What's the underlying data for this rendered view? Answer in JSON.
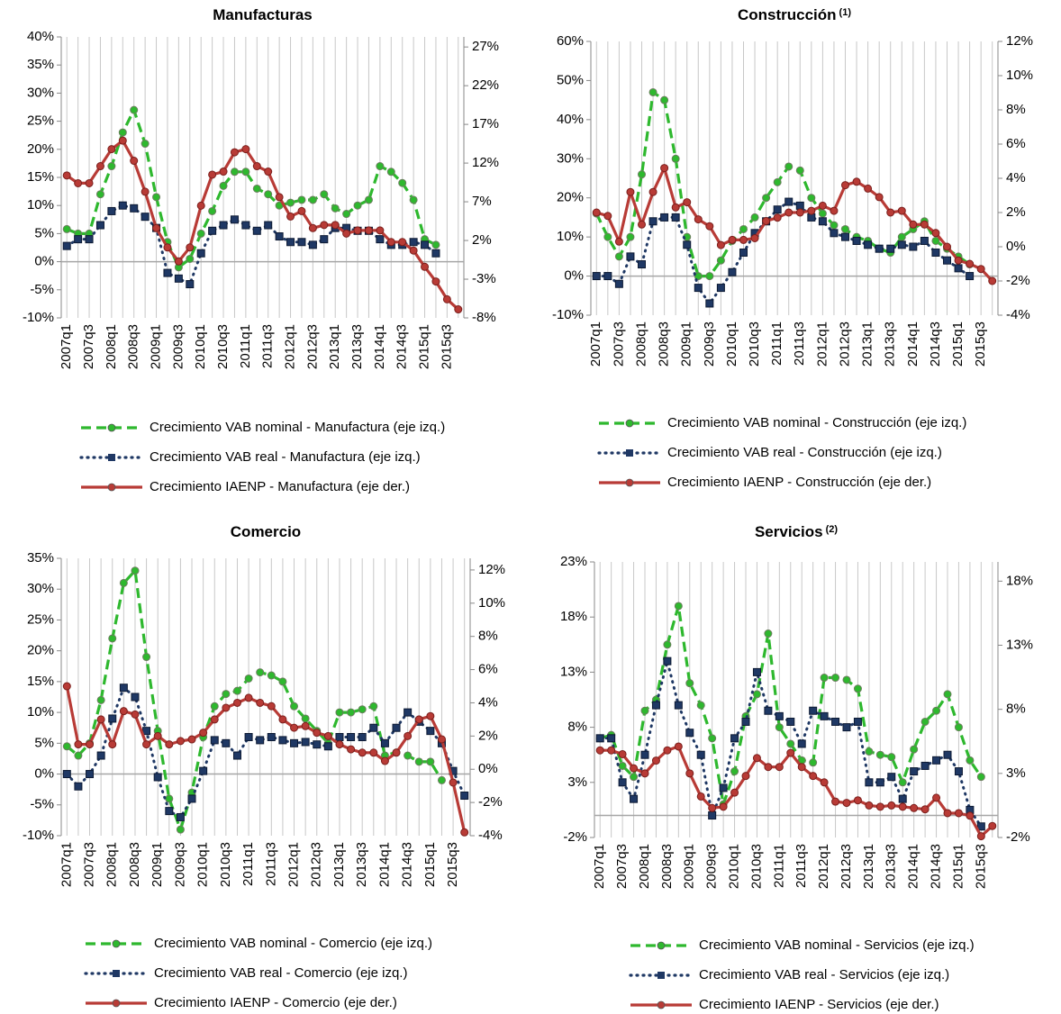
{
  "chart_data": [
    {
      "type": "line",
      "title": "Manufacturas",
      "categories": [
        "2007q1",
        null,
        "2007q3",
        null,
        "2008q1",
        null,
        "2008q3",
        null,
        "2009q1",
        null,
        "2009q3",
        null,
        "2010q1",
        null,
        "2010q3",
        null,
        "2011q1",
        null,
        "2011q3",
        null,
        "2012q1",
        null,
        "2012q3",
        null,
        "2013q1",
        null,
        "2013q3",
        null,
        "2014q1",
        null,
        "2014q3",
        null,
        "2015q1",
        null,
        "2015q3",
        null
      ],
      "ylim": [
        -10,
        40
      ],
      "yticks": [
        {
          "value": -10,
          "label": "-10%"
        },
        {
          "value": -5,
          "label": "-5%"
        },
        {
          "value": 0,
          "label": "0%"
        },
        {
          "value": 5,
          "label": "5%"
        },
        {
          "value": 10,
          "label": "10%"
        },
        {
          "value": 15,
          "label": "15%"
        },
        {
          "value": 20,
          "label": "20%"
        },
        {
          "value": 25,
          "label": "25%"
        },
        {
          "value": 30,
          "label": "30%"
        },
        {
          "value": 35,
          "label": "35%"
        },
        {
          "value": 40,
          "label": "40%"
        }
      ],
      "y2lim": [
        -8,
        28.3
      ],
      "y2ticks": [
        {
          "value": -8,
          "label": "-8%"
        },
        {
          "value": -3,
          "label": "-3%"
        },
        {
          "value": 2,
          "label": "2%"
        },
        {
          "value": 7,
          "label": "7%"
        },
        {
          "value": 12,
          "label": "12%"
        },
        {
          "value": 17,
          "label": "17%"
        },
        {
          "value": 22,
          "label": "22%"
        },
        {
          "value": 27,
          "label": "27%"
        }
      ],
      "grid": true,
      "series": [
        {
          "name": "Crecimiento VAB nominal - Manufactura (eje izq.)",
          "color": "#2eb82e",
          "dash": "dashed",
          "marker": "circle",
          "values": [
            5.8,
            5,
            5,
            12,
            17,
            23,
            27,
            21,
            11.5,
            3.5,
            -1,
            0.5,
            5,
            9,
            13.5,
            16,
            16,
            13,
            12,
            10,
            10.5,
            11,
            11,
            12,
            9.5,
            8.5,
            10,
            11,
            17,
            16,
            14,
            11,
            4,
            3,
            null,
            null
          ]
        },
        {
          "name": "Crecimiento VAB real - Manufactura (eje izq.)",
          "color": "#1f3864",
          "dash": "dotted",
          "marker": "square",
          "values": [
            2.8,
            4,
            4,
            6.5,
            9,
            10,
            9.5,
            8,
            6,
            -2,
            -3,
            -4,
            1.5,
            5.5,
            6.5,
            7.5,
            6.5,
            5.5,
            6.5,
            4.5,
            3.5,
            3.5,
            3,
            4,
            6,
            6,
            5.5,
            5.5,
            4,
            3,
            3,
            3.5,
            3,
            1.5,
            null,
            null
          ]
        },
        {
          "name": "Crecimiento IAENP - Manufactura (eje der.)",
          "color": "#b83b36",
          "dash": "solid",
          "marker": "circle",
          "axis": "y2",
          "values": [
            10.4,
            9.4,
            9.4,
            11.6,
            13.8,
            14.9,
            12.3,
            8.3,
            3.6,
            1.1,
            -0.7,
            1.1,
            6.5,
            10.5,
            10.9,
            13.4,
            13.8,
            11.6,
            10.9,
            7.6,
            5.1,
            5.8,
            3.6,
            4.0,
            4.0,
            2.9,
            3.3,
            3.3,
            3.3,
            1.8,
            1.8,
            0.7,
            -1.4,
            -3.3,
            -5.6,
            -6.9
          ]
        }
      ]
    },
    {
      "type": "line",
      "title": "Construcción",
      "title_note": "(1)",
      "categories": [
        "2007q1",
        null,
        "2007q3",
        null,
        "2008q1",
        null,
        "2008q3",
        null,
        "2009q1",
        null,
        "2009q3",
        null,
        "2010q1",
        null,
        "2010q3",
        null,
        "2011q1",
        null,
        "2011q3",
        null,
        "2012q1",
        null,
        "2012q3",
        null,
        "2013q1",
        null,
        "2013q3",
        null,
        "2014q1",
        null,
        "2014q3",
        null,
        "2015q1",
        null,
        "2015q3",
        null
      ],
      "ylim": [
        -10,
        60
      ],
      "yticks": [
        {
          "value": -10,
          "label": "-10%"
        },
        {
          "value": 0,
          "label": "0%"
        },
        {
          "value": 10,
          "label": "10%"
        },
        {
          "value": 20,
          "label": "20%"
        },
        {
          "value": 30,
          "label": "30%"
        },
        {
          "value": 40,
          "label": "40%"
        },
        {
          "value": 50,
          "label": "50%"
        },
        {
          "value": 60,
          "label": "60%"
        }
      ],
      "y2lim": [
        -4,
        12
      ],
      "y2ticks": [
        {
          "value": -4,
          "label": "-4%"
        },
        {
          "value": -2,
          "label": "-2%"
        },
        {
          "value": 0,
          "label": "0%"
        },
        {
          "value": 2,
          "label": "2%"
        },
        {
          "value": 4,
          "label": "4%"
        },
        {
          "value": 6,
          "label": "6%"
        },
        {
          "value": 8,
          "label": "8%"
        },
        {
          "value": 10,
          "label": "10%"
        },
        {
          "value": 12,
          "label": "12%"
        }
      ],
      "grid": true,
      "series": [
        {
          "name": "Crecimiento VAB nominal - Construcción (eje izq.)",
          "color": "#2eb82e",
          "dash": "dashed",
          "marker": "circle",
          "values": [
            16,
            10,
            5,
            10,
            26,
            47,
            45,
            30,
            10,
            0,
            0,
            4,
            9,
            12,
            15,
            20,
            24,
            28,
            27,
            20,
            16,
            13,
            12,
            10,
            9,
            7,
            6,
            10,
            12,
            14,
            9,
            7,
            5,
            3,
            null,
            null
          ]
        },
        {
          "name": "Crecimiento VAB real - Construcción (eje izq.)",
          "color": "#1f3864",
          "dash": "dotted",
          "marker": "square",
          "values": [
            0,
            0,
            -2,
            5,
            3,
            14,
            15,
            15,
            8,
            -3,
            -7,
            -3,
            1,
            6,
            11,
            14,
            17,
            19,
            18,
            15,
            14,
            11,
            10,
            9,
            8,
            7,
            7,
            8,
            7.5,
            9,
            6,
            4,
            2,
            0,
            null,
            null
          ]
        },
        {
          "name": "Crecimiento IAENP - Construcción (eje der.)",
          "color": "#b83b36",
          "dash": "solid",
          "marker": "circle",
          "axis": "y2",
          "values": [
            2,
            1.8,
            0.3,
            3.2,
            1.3,
            3.2,
            4.6,
            2.3,
            2.6,
            1.6,
            1.2,
            0.1,
            0.4,
            0.4,
            0.5,
            1.5,
            1.7,
            2,
            2,
            2.1,
            2.4,
            2.1,
            3.6,
            3.8,
            3.4,
            2.9,
            2,
            2.1,
            1.3,
            1.3,
            0.8,
            0,
            -0.8,
            -1,
            -1.3,
            -2
          ]
        }
      ]
    },
    {
      "type": "line",
      "title": "Comercio",
      "categories": [
        "2007q1",
        null,
        "2007q3",
        null,
        "2008q1",
        null,
        "2008q3",
        null,
        "2009q1",
        null,
        "2009q3",
        null,
        "2010q1",
        null,
        "2010q3",
        null,
        "2011q1",
        null,
        "2011q3",
        null,
        "2012q1",
        null,
        "2012q3",
        null,
        "2013q1",
        null,
        "2013q3",
        null,
        "2014q1",
        null,
        "2014q3",
        null,
        "2015q1",
        null,
        "2015q3",
        null
      ],
      "ylim": [
        -10,
        35
      ],
      "yticks": [
        {
          "value": -10,
          "label": "-10%"
        },
        {
          "value": -5,
          "label": "-5%"
        },
        {
          "value": 0,
          "label": "0%"
        },
        {
          "value": 5,
          "label": "5%"
        },
        {
          "value": 10,
          "label": "10%"
        },
        {
          "value": 15,
          "label": "15%"
        },
        {
          "value": 20,
          "label": "20%"
        },
        {
          "value": 25,
          "label": "25%"
        },
        {
          "value": 30,
          "label": "30%"
        },
        {
          "value": 35,
          "label": "35%"
        }
      ],
      "y2lim": [
        -4,
        12.7
      ],
      "y2ticks": [
        {
          "value": -4,
          "label": "-4%"
        },
        {
          "value": -2,
          "label": "-2%"
        },
        {
          "value": 0,
          "label": "0%"
        },
        {
          "value": 2,
          "label": "2%"
        },
        {
          "value": 4,
          "label": "4%"
        },
        {
          "value": 6,
          "label": "6%"
        },
        {
          "value": 8,
          "label": "8%"
        },
        {
          "value": 10,
          "label": "10%"
        },
        {
          "value": 12,
          "label": "12%"
        }
      ],
      "grid": true,
      "series": [
        {
          "name": "Crecimiento VAB nominal - Comercio (eje izq.)",
          "color": "#2eb82e",
          "dash": "dashed",
          "marker": "circle",
          "values": [
            4.5,
            3,
            5,
            12,
            22,
            31,
            33,
            19,
            7,
            -4,
            -9,
            -3,
            6,
            11,
            13,
            13.5,
            15.5,
            16.5,
            16,
            15,
            11,
            9,
            7,
            5,
            10,
            10,
            10.5,
            11,
            3,
            3.5,
            3,
            2,
            2,
            -1,
            null,
            null
          ]
        },
        {
          "name": "Crecimiento VAB real - Comercio (eje izq.)",
          "color": "#1f3864",
          "dash": "dotted",
          "marker": "square",
          "values": [
            0,
            -2,
            0,
            3,
            9,
            14,
            12.5,
            7,
            -0.5,
            -6,
            -7,
            -4,
            0.5,
            5.5,
            5,
            3,
            6,
            5.5,
            6,
            5.5,
            5,
            5.2,
            4.8,
            4.5,
            6,
            6,
            6,
            7.5,
            5,
            7.5,
            10,
            8.5,
            7,
            5,
            0.5,
            -3.5
          ]
        },
        {
          "name": "Crecimiento IAENP - Comercio (eje der.)",
          "color": "#b83b36",
          "dash": "solid",
          "marker": "circle",
          "axis": "y2",
          "values": [
            5,
            1.5,
            1.5,
            3,
            1.5,
            3.5,
            3.3,
            1.5,
            2,
            1.5,
            1.7,
            1.8,
            2.2,
            3,
            3.7,
            4,
            4.3,
            4,
            3.8,
            3,
            2.5,
            2.6,
            2.2,
            2,
            1.5,
            1.2,
            1,
            1,
            0.5,
            1,
            2,
            3,
            3.2,
            1.8,
            -0.8,
            -3.8
          ]
        }
      ]
    },
    {
      "type": "line",
      "title": "Servicios",
      "title_note": "(2)",
      "categories": [
        "2007q1",
        null,
        "2007q3",
        null,
        "2008q1",
        null,
        "2008q3",
        null,
        "2009q1",
        null,
        "2009q3",
        null,
        "2010q1",
        null,
        "2010q3",
        null,
        "2011q1",
        null,
        "2011q3",
        null,
        "2012q1",
        null,
        "2012q3",
        null,
        "2013q1",
        null,
        "2013q3",
        null,
        "2014q1",
        null,
        "2014q3",
        null,
        "2015q1",
        null,
        "2015q3",
        null
      ],
      "ylim": [
        -2,
        23
      ],
      "yticks": [
        {
          "value": -2,
          "label": "-2%"
        },
        {
          "value": 3,
          "label": "3%"
        },
        {
          "value": 8,
          "label": "8%"
        },
        {
          "value": 13,
          "label": "13%"
        },
        {
          "value": 18,
          "label": "18%"
        },
        {
          "value": 23,
          "label": "23%"
        }
      ],
      "y2lim": [
        -2,
        19.5
      ],
      "y2ticks": [
        {
          "value": -2,
          "label": "-2%"
        },
        {
          "value": 3,
          "label": "3%"
        },
        {
          "value": 8,
          "label": "8%"
        },
        {
          "value": 13,
          "label": "13%"
        },
        {
          "value": 18,
          "label": "18%"
        }
      ],
      "grid": true,
      "series": [
        {
          "name": "Crecimiento VAB nominal - Servicios (eje izq.)",
          "color": "#2eb82e",
          "dash": "dashed",
          "marker": "circle",
          "values": [
            7,
            7.3,
            4.5,
            3.5,
            9.5,
            10.5,
            15.5,
            19,
            12,
            10,
            7,
            1,
            4,
            9,
            11,
            16.5,
            8,
            6.5,
            5,
            4.8,
            12.5,
            12.5,
            12.3,
            11.5,
            5.8,
            5.5,
            5.3,
            3,
            6,
            8.5,
            9.5,
            11,
            8,
            5,
            3.5,
            null
          ]
        },
        {
          "name": "Crecimiento VAB real - Servicios (eje izq.)",
          "color": "#1f3864",
          "dash": "dotted",
          "marker": "square",
          "values": [
            7,
            7,
            3,
            1.5,
            5.5,
            10,
            14,
            10,
            7.5,
            5.5,
            0,
            2.5,
            7,
            8.5,
            13,
            9.5,
            9,
            8.5,
            6.5,
            9.5,
            9,
            8.5,
            8,
            8.5,
            3,
            3,
            3.5,
            1.5,
            4,
            4.5,
            5,
            5.5,
            4,
            0.5,
            -1,
            null
          ]
        },
        {
          "name": "Crecimiento IAENP - Servicios (eje der.)",
          "color": "#b83b36",
          "dash": "solid",
          "marker": "circle",
          "axis": "y2",
          "values": [
            4.8,
            4.8,
            4.5,
            3.4,
            3,
            4,
            4.8,
            5.1,
            3,
            1.2,
            0.3,
            0.4,
            1.5,
            2.8,
            4.2,
            3.5,
            3.5,
            4.6,
            3.5,
            2.8,
            2.3,
            0.8,
            0.7,
            0.9,
            0.5,
            0.4,
            0.5,
            0.4,
            0.3,
            0.2,
            1.1,
            -0.1,
            -0.1,
            -0.3,
            -1.9,
            -1.1
          ]
        }
      ]
    }
  ]
}
